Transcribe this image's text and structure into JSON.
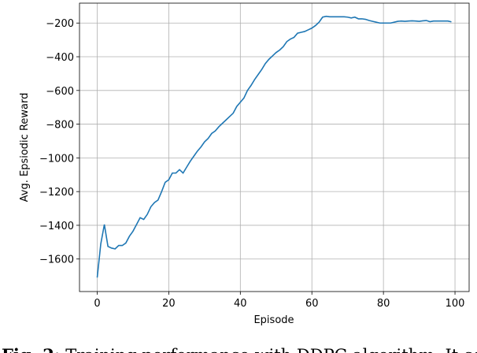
{
  "chart_data": {
    "type": "line",
    "x_label": "Episode",
    "y_label": "Avg. Epsiodic Reward",
    "x": [
      0,
      1,
      2,
      3,
      4,
      5,
      6,
      7,
      8,
      9,
      10,
      11,
      12,
      13,
      14,
      15,
      16,
      17,
      18,
      19,
      20,
      21,
      22,
      23,
      24,
      25,
      26,
      27,
      28,
      29,
      30,
      31,
      32,
      33,
      34,
      35,
      36,
      37,
      38,
      39,
      40,
      41,
      42,
      43,
      44,
      45,
      46,
      47,
      48,
      49,
      50,
      51,
      52,
      53,
      54,
      55,
      56,
      57,
      58,
      59,
      60,
      61,
      62,
      63,
      64,
      65,
      66,
      67,
      68,
      69,
      70,
      71,
      72,
      73,
      74,
      75,
      76,
      77,
      78,
      79,
      80,
      81,
      82,
      83,
      84,
      85,
      86,
      87,
      88,
      89,
      90,
      91,
      92,
      93,
      94,
      95,
      96,
      97,
      98,
      99
    ],
    "series": [
      {
        "name": "reward",
        "color": "#1f77b4",
        "values": [
          -1710,
          -1510,
          -1395,
          -1525,
          -1535,
          -1540,
          -1520,
          -1520,
          -1505,
          -1465,
          -1435,
          -1395,
          -1355,
          -1365,
          -1335,
          -1290,
          -1265,
          -1250,
          -1200,
          -1145,
          -1130,
          -1090,
          -1090,
          -1070,
          -1090,
          -1055,
          -1020,
          -990,
          -960,
          -935,
          -905,
          -885,
          -855,
          -840,
          -815,
          -795,
          -775,
          -755,
          -735,
          -695,
          -670,
          -645,
          -600,
          -570,
          -535,
          -505,
          -475,
          -440,
          -415,
          -395,
          -375,
          -360,
          -340,
          -310,
          -295,
          -285,
          -260,
          -255,
          -250,
          -240,
          -230,
          -215,
          -195,
          -165,
          -160,
          -163,
          -163,
          -163,
          -163,
          -163,
          -165,
          -170,
          -165,
          -175,
          -175,
          -178,
          -185,
          -190,
          -195,
          -200,
          -200,
          -200,
          -200,
          -195,
          -190,
          -188,
          -190,
          -188,
          -187,
          -188,
          -190,
          -187,
          -185,
          -192,
          -188,
          -188,
          -188,
          -188,
          -188,
          -193
        ]
      }
    ],
    "xlim": [
      -4.95,
      103.95
    ],
    "ylim": [
      -1793,
      -82
    ],
    "xticks": [
      0,
      20,
      40,
      60,
      80,
      100
    ],
    "yticks": [
      {
        "value": -1600,
        "label": "−1600"
      },
      {
        "value": -1400,
        "label": "−1400"
      },
      {
        "value": -1200,
        "label": "−1200"
      },
      {
        "value": -1000,
        "label": "−1000"
      },
      {
        "value": -800,
        "label": "−800"
      },
      {
        "value": -600,
        "label": "−600"
      },
      {
        "value": -400,
        "label": "−400"
      },
      {
        "value": -200,
        "label": "−200"
      }
    ],
    "grid": true
  },
  "caption": {
    "label": "Fig. 2:",
    "text": "Training performance with DDPG algorithm. It col"
  }
}
